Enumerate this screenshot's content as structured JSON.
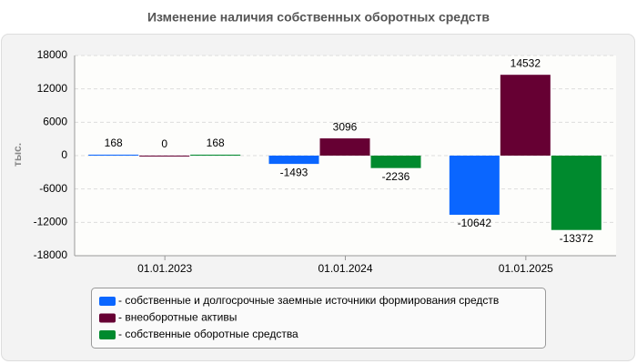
{
  "chart_data": {
    "type": "bar",
    "title": "Изменение наличия собственных оборотных средств",
    "y_label": "тыс.",
    "categories": [
      "01.01.2023",
      "01.01.2024",
      "01.01.2025"
    ],
    "series": [
      {
        "name": "- собственные и долгосрочные заемные источники формирования средств",
        "color": "#0a66ff",
        "values": [
          168,
          -1493,
          -10642
        ]
      },
      {
        "name": "- внеоборотные активы",
        "color": "#660033",
        "values": [
          0,
          3096,
          14532
        ]
      },
      {
        "name": "- собственные оборотные средства",
        "color": "#008a2e",
        "values": [
          168,
          -2236,
          -13372
        ]
      }
    ],
    "ylim": [
      -18000,
      18000
    ],
    "yticks": [
      -18000,
      -12000,
      -6000,
      0,
      6000,
      12000,
      18000
    ],
    "grid": true
  }
}
